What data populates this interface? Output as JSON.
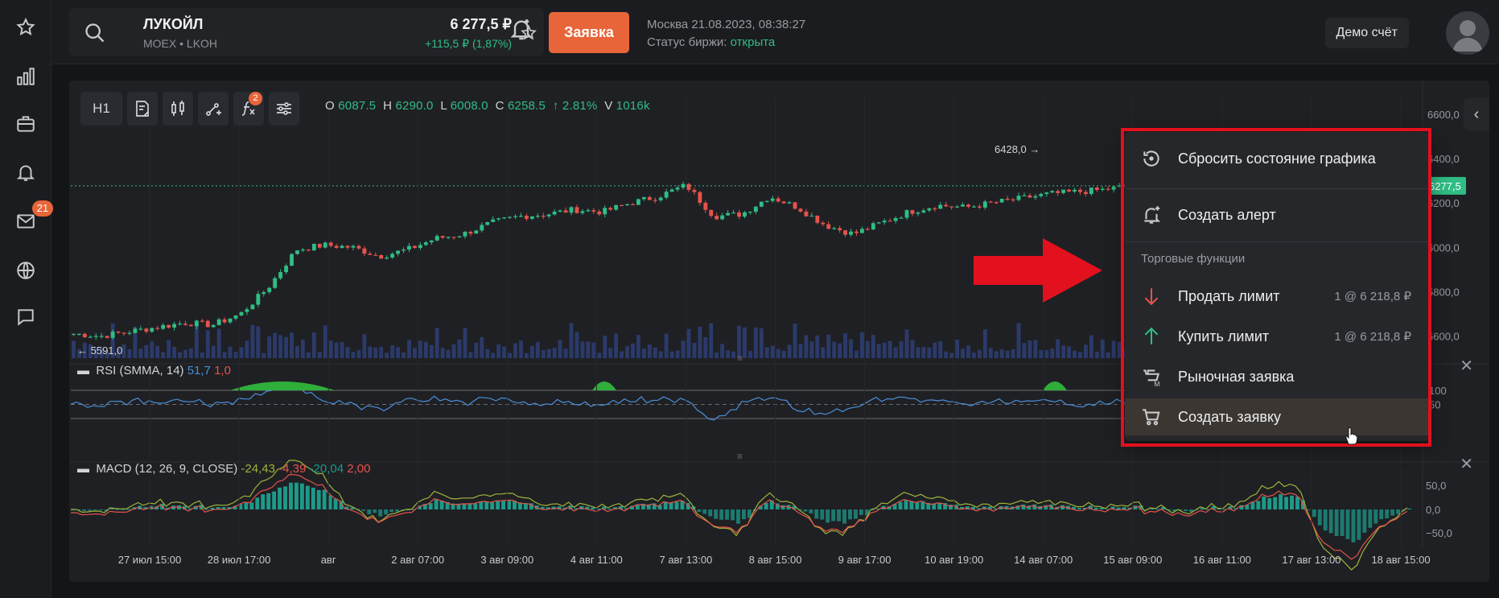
{
  "sidebar": {
    "items": [
      {
        "icon": "star-icon",
        "name": "favorites"
      },
      {
        "icon": "bar-chart-icon",
        "name": "analytics"
      },
      {
        "icon": "briefcase-icon",
        "name": "portfolio"
      },
      {
        "icon": "bell-icon",
        "name": "alerts"
      },
      {
        "icon": "mail-icon",
        "name": "messages",
        "badge": "21"
      },
      {
        "icon": "globe-icon",
        "name": "markets"
      },
      {
        "icon": "chat-icon",
        "name": "chat"
      }
    ]
  },
  "header": {
    "ticker_name": "ЛУКОЙЛ",
    "ticker_sub": "MOEX • LKOH",
    "price": "6 277,5 ₽",
    "change": "+115,5 ₽ (1,87%)",
    "order_button": "Заявка",
    "market_time": "Москва 21.08.2023, 08:38:27",
    "exchange_status_label": "Статус биржи: ",
    "exchange_status_value": "открыта",
    "demo_button": "Демо счёт"
  },
  "toolbar": {
    "interval": "H1",
    "indicators_badge": "2",
    "ohlc": {
      "o_label": "O",
      "o": "6087.5",
      "h_label": "H",
      "h": "6290.0",
      "l_label": "L",
      "l": "6008.0",
      "c_label": "C",
      "c": "6258.5",
      "change": "↑ 2.81%",
      "v_label": "V",
      "v": "1016k"
    }
  },
  "chart_data": {
    "type": "candlestick",
    "price_axis_ticks": [
      "6600,0",
      "6400,0",
      "6200,0",
      "6000,0",
      "5800,0",
      "5600,0"
    ],
    "price_range": [
      5500,
      6680
    ],
    "current_price_label": "6277,5",
    "max_label": "6428,0 →",
    "min_label": "← 5591,0",
    "x_ticks": [
      "27 июл 15:00",
      "28 июл 17:00",
      "авг",
      "2 авг 07:00",
      "3 авг 09:00",
      "4 авг 11:00",
      "7 авг 13:00",
      "8 авг 15:00",
      "9 авг 17:00",
      "10 авг 19:00",
      "14 авг 07:00",
      "15 авг 09:00",
      "16 авг 11:00",
      "17 авг 13:00",
      "18 авг 15:00"
    ],
    "close_trend": [
      5610,
      5600,
      5620,
      5640,
      5660,
      5650,
      5700,
      5820,
      5990,
      6010,
      6000,
      5960,
      5990,
      6040,
      6060,
      6110,
      6140,
      6150,
      6170,
      6160,
      6200,
      6230,
      6280,
      6140,
      6150,
      6230,
      6180,
      6100,
      6060,
      6110,
      6160,
      6190,
      6180,
      6200,
      6220,
      6240,
      6250,
      6260,
      6280,
      6270,
      6270,
      6290,
      6300,
      6420,
      6440,
      6200,
      6110,
      6090,
      6120
    ]
  },
  "rsi": {
    "label": "RSI (SMMA, 14)",
    "value1": "51,7",
    "value2": "1,0",
    "axis_ticks": [
      "100",
      "50"
    ]
  },
  "macd": {
    "label": "MACD (12, 26, 9, CLOSE)",
    "v1": "-24,43",
    "v2": "-4,39",
    "v3": "-20,04",
    "v4": "2,00",
    "axis_ticks": [
      "50,0",
      "0,0",
      "−50,0"
    ]
  },
  "context_menu": {
    "reset": "Сбросить состояние графика",
    "create_alert": "Создать алерт",
    "section_trading": "Торговые функции",
    "sell_limit": "Продать лимит",
    "sell_limit_meta": "1 @ 6 218,8 ₽",
    "buy_limit": "Купить лимит",
    "buy_limit_meta": "1 @ 6 218,8 ₽",
    "market_order": "Рыночная заявка",
    "create_order": "Создать заявку"
  },
  "colors": {
    "accent": "#e8653a",
    "up": "#2fbd85",
    "down": "#e5534b",
    "highlight_frame": "#e3101d"
  }
}
